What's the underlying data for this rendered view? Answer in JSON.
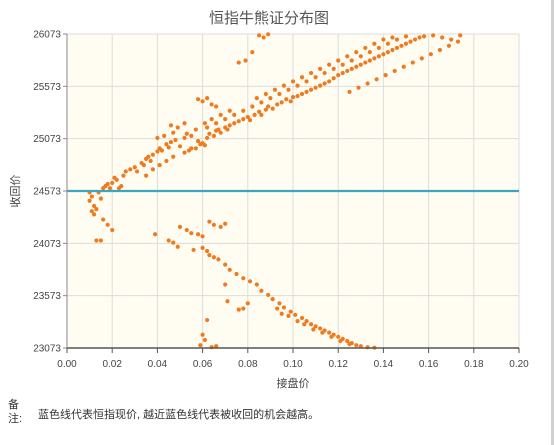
{
  "chart_data": {
    "type": "scatter",
    "title": "恒指牛熊证分布图",
    "xlabel": "接盘价",
    "ylabel": "收回价",
    "xlim": [
      0,
      0.2
    ],
    "ylim": [
      23073,
      26073
    ],
    "x_ticks": [
      "0.00",
      "0.02",
      "0.04",
      "0.06",
      "0.08",
      "0.10",
      "0.12",
      "0.14",
      "0.16",
      "0.18",
      "0.20"
    ],
    "y_ticks": [
      "23073",
      "23573",
      "24073",
      "24573",
      "25073",
      "25573",
      "26073"
    ],
    "reference_line": {
      "y": 24573,
      "color": "#3aa6c4"
    },
    "grid": true,
    "colors": {
      "point": "#f07a1e",
      "plot_bg": "#fffdf2",
      "grid": "#dcdcdc"
    },
    "points": [
      [
        0.01,
        24560
      ],
      [
        0.011,
        24520
      ],
      [
        0.01,
        24480
      ],
      [
        0.012,
        24430
      ],
      [
        0.011,
        24380
      ],
      [
        0.013,
        24400
      ],
      [
        0.012,
        24350
      ],
      [
        0.014,
        24560
      ],
      [
        0.015,
        24500
      ],
      [
        0.016,
        24600
      ],
      [
        0.017,
        24620
      ],
      [
        0.018,
        24640
      ],
      [
        0.019,
        24600
      ],
      [
        0.02,
        24650
      ],
      [
        0.021,
        24700
      ],
      [
        0.022,
        24680
      ],
      [
        0.023,
        24600
      ],
      [
        0.024,
        24620
      ],
      [
        0.016,
        24300
      ],
      [
        0.018,
        24250
      ],
      [
        0.02,
        24200
      ],
      [
        0.013,
        24100
      ],
      [
        0.015,
        24100
      ],
      [
        0.025,
        24720
      ],
      [
        0.026,
        24760
      ],
      [
        0.028,
        24780
      ],
      [
        0.03,
        24800
      ],
      [
        0.031,
        24760
      ],
      [
        0.033,
        24840
      ],
      [
        0.034,
        24820
      ],
      [
        0.035,
        24880
      ],
      [
        0.036,
        24900
      ],
      [
        0.037,
        24860
      ],
      [
        0.038,
        24920
      ],
      [
        0.04,
        24950
      ],
      [
        0.041,
        24980
      ],
      [
        0.042,
        24960
      ],
      [
        0.044,
        25020
      ],
      [
        0.045,
        24990
      ],
      [
        0.046,
        25040
      ],
      [
        0.048,
        25060
      ],
      [
        0.05,
        25000
      ],
      [
        0.052,
        25080
      ],
      [
        0.054,
        24960
      ],
      [
        0.055,
        25100
      ],
      [
        0.057,
        24980
      ],
      [
        0.058,
        25050
      ],
      [
        0.059,
        25020
      ],
      [
        0.06,
        25030
      ],
      [
        0.061,
        25010
      ],
      [
        0.062,
        25080
      ],
      [
        0.063,
        25120
      ],
      [
        0.065,
        25100
      ],
      [
        0.066,
        25150
      ],
      [
        0.067,
        25160
      ],
      [
        0.068,
        25130
      ],
      [
        0.07,
        25180
      ],
      [
        0.071,
        25160
      ],
      [
        0.072,
        25200
      ],
      [
        0.074,
        25220
      ],
      [
        0.076,
        25240
      ],
      [
        0.078,
        25260
      ],
      [
        0.08,
        25280
      ],
      [
        0.081,
        25250
      ],
      [
        0.083,
        25300
      ],
      [
        0.085,
        25330
      ],
      [
        0.086,
        25300
      ],
      [
        0.088,
        25350
      ],
      [
        0.089,
        25380
      ],
      [
        0.091,
        25360
      ],
      [
        0.093,
        25400
      ],
      [
        0.095,
        25420
      ],
      [
        0.097,
        25450
      ],
      [
        0.099,
        25430
      ],
      [
        0.1,
        25470
      ],
      [
        0.102,
        25480
      ],
      [
        0.104,
        25500
      ],
      [
        0.106,
        25520
      ],
      [
        0.108,
        25540
      ],
      [
        0.11,
        25560
      ],
      [
        0.112,
        25580
      ],
      [
        0.114,
        25600
      ],
      [
        0.116,
        25620
      ],
      [
        0.118,
        25650
      ],
      [
        0.12,
        25680
      ],
      [
        0.122,
        25700
      ],
      [
        0.124,
        25720
      ],
      [
        0.126,
        25740
      ],
      [
        0.128,
        25760
      ],
      [
        0.13,
        25780
      ],
      [
        0.132,
        25800
      ],
      [
        0.134,
        25820
      ],
      [
        0.136,
        25840
      ],
      [
        0.138,
        25860
      ],
      [
        0.14,
        25880
      ],
      [
        0.142,
        25900
      ],
      [
        0.144,
        25920
      ],
      [
        0.146,
        25940
      ],
      [
        0.148,
        25960
      ],
      [
        0.15,
        25980
      ],
      [
        0.152,
        26000
      ],
      [
        0.154,
        26020
      ],
      [
        0.156,
        26040
      ],
      [
        0.158,
        26050
      ],
      [
        0.035,
        24720
      ],
      [
        0.038,
        24780
      ],
      [
        0.041,
        24820
      ],
      [
        0.044,
        24860
      ],
      [
        0.047,
        24900
      ],
      [
        0.052,
        24940
      ],
      [
        0.055,
        24980
      ],
      [
        0.058,
        25050
      ],
      [
        0.062,
        25180
      ],
      [
        0.066,
        25220
      ],
      [
        0.07,
        25260
      ],
      [
        0.074,
        25300
      ],
      [
        0.078,
        25340
      ],
      [
        0.082,
        25380
      ],
      [
        0.086,
        25420
      ],
      [
        0.09,
        25460
      ],
      [
        0.094,
        25500
      ],
      [
        0.098,
        25540
      ],
      [
        0.102,
        25580
      ],
      [
        0.106,
        25620
      ],
      [
        0.11,
        25660
      ],
      [
        0.114,
        25700
      ],
      [
        0.118,
        25740
      ],
      [
        0.122,
        25780
      ],
      [
        0.126,
        25820
      ],
      [
        0.13,
        25860
      ],
      [
        0.134,
        25900
      ],
      [
        0.138,
        25940
      ],
      [
        0.142,
        25980
      ],
      [
        0.146,
        26020
      ],
      [
        0.15,
        26050
      ],
      [
        0.162,
        26060
      ],
      [
        0.166,
        26040
      ],
      [
        0.17,
        26020
      ],
      [
        0.174,
        26060
      ],
      [
        0.085,
        26060
      ],
      [
        0.087,
        26040
      ],
      [
        0.089,
        26070
      ],
      [
        0.076,
        25800
      ],
      [
        0.079,
        25820
      ],
      [
        0.082,
        25900
      ],
      [
        0.058,
        25450
      ],
      [
        0.06,
        25430
      ],
      [
        0.062,
        25460
      ],
      [
        0.064,
        25400
      ],
      [
        0.066,
        25380
      ],
      [
        0.046,
        25200
      ],
      [
        0.049,
        25180
      ],
      [
        0.052,
        25220
      ],
      [
        0.04,
        25080
      ],
      [
        0.043,
        25100
      ],
      [
        0.047,
        25130
      ],
      [
        0.053,
        25120
      ],
      [
        0.057,
        25160
      ],
      [
        0.061,
        25220
      ],
      [
        0.064,
        25260
      ],
      [
        0.068,
        25300
      ],
      [
        0.072,
        25340
      ],
      [
        0.084,
        25460
      ],
      [
        0.088,
        25500
      ],
      [
        0.092,
        25540
      ],
      [
        0.096,
        25580
      ],
      [
        0.1,
        25620
      ],
      [
        0.104,
        25660
      ],
      [
        0.108,
        25700
      ],
      [
        0.112,
        25740
      ],
      [
        0.116,
        25780
      ],
      [
        0.12,
        25820
      ],
      [
        0.124,
        25860
      ],
      [
        0.128,
        25900
      ],
      [
        0.132,
        25940
      ],
      [
        0.136,
        25980
      ],
      [
        0.14,
        26020
      ],
      [
        0.144,
        26040
      ],
      [
        0.125,
        25520
      ],
      [
        0.129,
        25560
      ],
      [
        0.133,
        25600
      ],
      [
        0.137,
        25640
      ],
      [
        0.141,
        25680
      ],
      [
        0.145,
        25720
      ],
      [
        0.149,
        25760
      ],
      [
        0.153,
        25800
      ],
      [
        0.157,
        25840
      ],
      [
        0.161,
        25880
      ],
      [
        0.165,
        25920
      ],
      [
        0.169,
        25960
      ],
      [
        0.173,
        26000
      ],
      [
        0.05,
        24230
      ],
      [
        0.053,
        24200
      ],
      [
        0.055,
        24170
      ],
      [
        0.058,
        24160
      ],
      [
        0.06,
        24140
      ],
      [
        0.063,
        24280
      ],
      [
        0.065,
        24250
      ],
      [
        0.068,
        24230
      ],
      [
        0.07,
        24260
      ],
      [
        0.039,
        24160
      ],
      [
        0.045,
        24100
      ],
      [
        0.047,
        24080
      ],
      [
        0.049,
        24040
      ],
      [
        0.056,
        24010
      ],
      [
        0.06,
        24030
      ],
      [
        0.062,
        24000
      ],
      [
        0.063,
        23960
      ],
      [
        0.065,
        23940
      ],
      [
        0.067,
        23920
      ],
      [
        0.07,
        23870
      ],
      [
        0.072,
        23820
      ],
      [
        0.075,
        23780
      ],
      [
        0.078,
        23740
      ],
      [
        0.081,
        23710
      ],
      [
        0.084,
        23680
      ],
      [
        0.086,
        23620
      ],
      [
        0.089,
        23580
      ],
      [
        0.091,
        23540
      ],
      [
        0.094,
        23500
      ],
      [
        0.096,
        23460
      ],
      [
        0.099,
        23420
      ],
      [
        0.101,
        23390
      ],
      [
        0.104,
        23360
      ],
      [
        0.106,
        23330
      ],
      [
        0.108,
        23300
      ],
      [
        0.11,
        23280
      ],
      [
        0.112,
        23260
      ],
      [
        0.114,
        23240
      ],
      [
        0.116,
        23220
      ],
      [
        0.118,
        23200
      ],
      [
        0.12,
        23180
      ],
      [
        0.122,
        23160
      ],
      [
        0.124,
        23140
      ],
      [
        0.126,
        23120
      ],
      [
        0.128,
        23100
      ],
      [
        0.13,
        23090
      ],
      [
        0.133,
        23080
      ],
      [
        0.136,
        23076
      ],
      [
        0.093,
        23450
      ],
      [
        0.095,
        23400
      ],
      [
        0.098,
        23380
      ],
      [
        0.102,
        23330
      ],
      [
        0.105,
        23300
      ],
      [
        0.109,
        23250
      ],
      [
        0.113,
        23220
      ],
      [
        0.117,
        23180
      ],
      [
        0.121,
        23140
      ],
      [
        0.125,
        23110
      ],
      [
        0.08,
        23500
      ],
      [
        0.078,
        23450
      ],
      [
        0.076,
        23440
      ],
      [
        0.071,
        23520
      ],
      [
        0.07,
        23680
      ],
      [
        0.062,
        23340
      ],
      [
        0.059,
        23100
      ],
      [
        0.06,
        23200
      ],
      [
        0.061,
        23150
      ],
      [
        0.064,
        23080
      ],
      [
        0.066,
        23090
      ]
    ]
  },
  "note": {
    "label": "备注:",
    "text": "蓝色线代表恒指现价, 越近蓝色线代表被收回的机会越高。"
  }
}
